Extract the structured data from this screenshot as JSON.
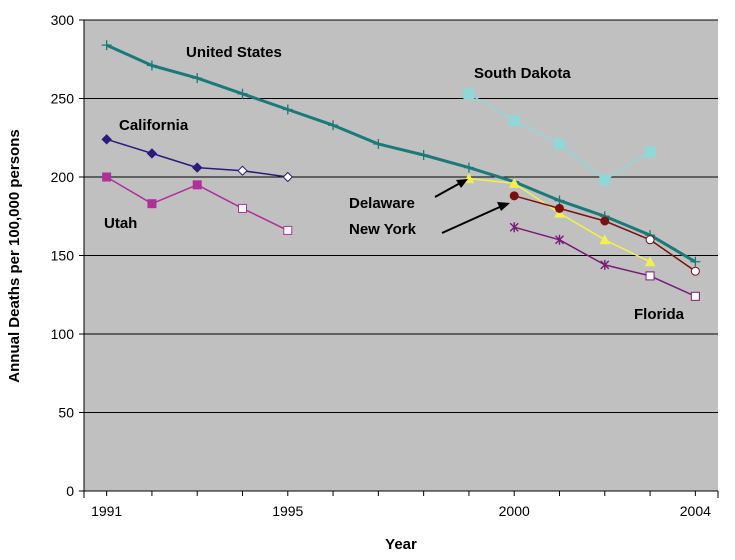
{
  "chart_data": {
    "type": "line",
    "title": "",
    "xlabel": "Year",
    "ylabel": "Annual Deaths per 100,000 persons",
    "xlim": [
      1990.5,
      2004.5
    ],
    "ylim": [
      0,
      300
    ],
    "xticks": [
      1991,
      1995,
      2000,
      2004
    ],
    "yticks": [
      0,
      50,
      100,
      150,
      200,
      250,
      300
    ],
    "grid": "horizontal",
    "plot_background": "#c0c0c0",
    "series": [
      {
        "name": "United States",
        "label": "United States",
        "color": "#1a7a78",
        "marker": "plus",
        "x": [
          1991,
          1992,
          1993,
          1994,
          1995,
          1996,
          1997,
          1998,
          1999,
          2000,
          2001,
          2002,
          2003,
          2004
        ],
        "y": [
          284,
          271,
          263,
          253,
          243,
          233,
          221,
          214,
          206,
          197,
          185,
          175,
          163,
          146
        ]
      },
      {
        "name": "California",
        "label": "California",
        "color": "#2b1b7a",
        "marker": "diamond",
        "x": [
          1991,
          1992,
          1993,
          1994,
          1995
        ],
        "y": [
          224,
          215,
          206,
          204,
          200
        ],
        "hollow_from": 3
      },
      {
        "name": "Utah",
        "label": "Utah",
        "color": "#b0309a",
        "marker": "square",
        "x": [
          1991,
          1992,
          1993,
          1994,
          1995
        ],
        "y": [
          200,
          183,
          195,
          180,
          166
        ],
        "hollow_from": 3
      },
      {
        "name": "South Dakota",
        "label": "South Dakota",
        "color": "#8fd8d8",
        "marker": "square-big",
        "x": [
          1999,
          2000,
          2001,
          2002,
          2003
        ],
        "y": [
          253,
          236,
          221,
          198,
          216
        ]
      },
      {
        "name": "Delaware",
        "label": "Delaware",
        "color": "#f2f050",
        "marker": "triangle",
        "x": [
          1999,
          2000,
          2001,
          2002,
          2003
        ],
        "y": [
          199,
          196,
          177,
          160,
          146
        ]
      },
      {
        "name": "New York",
        "label": "New York",
        "color": "#7a1010",
        "marker": "circle",
        "x": [
          2000,
          2001,
          2002,
          2003,
          2004
        ],
        "y": [
          188,
          180,
          172,
          160,
          140
        ],
        "hollow_from": 3
      },
      {
        "name": "Florida",
        "label": "Florida",
        "color": "#7a1a78",
        "marker": "star",
        "x": [
          2000,
          2001,
          2002,
          2003,
          2004
        ],
        "y": [
          168,
          160,
          144,
          137,
          124
        ],
        "hollow_from": 3
      }
    ]
  }
}
